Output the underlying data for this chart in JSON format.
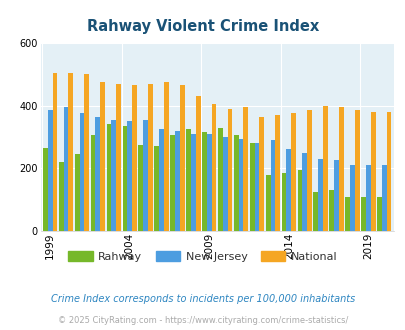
{
  "title": "Rahway Violent Crime Index",
  "title_color": "#1a5276",
  "years": [
    1999,
    2000,
    2001,
    2002,
    2003,
    2004,
    2005,
    2006,
    2007,
    2008,
    2009,
    2010,
    2011,
    2012,
    2013,
    2014,
    2015,
    2016,
    2017,
    2018,
    2019,
    2020
  ],
  "rahway": [
    265,
    220,
    245,
    305,
    340,
    335,
    275,
    270,
    305,
    325,
    315,
    330,
    305,
    280,
    180,
    185,
    195,
    125,
    130,
    110,
    110,
    110
  ],
  "new_jersey": [
    385,
    395,
    375,
    365,
    355,
    350,
    355,
    325,
    320,
    310,
    310,
    300,
    295,
    280,
    290,
    260,
    250,
    230,
    225,
    210,
    210,
    210
  ],
  "national": [
    505,
    505,
    500,
    475,
    470,
    465,
    470,
    475,
    465,
    430,
    405,
    390,
    395,
    365,
    370,
    375,
    385,
    400,
    395,
    385,
    380,
    380
  ],
  "rahway_color": "#76b82a",
  "nj_color": "#4d9de0",
  "national_color": "#f5a623",
  "bg_color": "#e4f0f6",
  "ylim": [
    0,
    600
  ],
  "yticks": [
    0,
    200,
    400,
    600
  ],
  "xlabel_years": [
    1999,
    2004,
    2009,
    2014,
    2019
  ],
  "footnote": "Crime Index corresponds to incidents per 100,000 inhabitants",
  "footnote2": "© 2025 CityRating.com - https://www.cityrating.com/crime-statistics/",
  "footnote_color": "#2e86c1",
  "footnote2_color": "#aaaaaa",
  "legend_labels": [
    "Rahway",
    "New Jersey",
    "National"
  ]
}
